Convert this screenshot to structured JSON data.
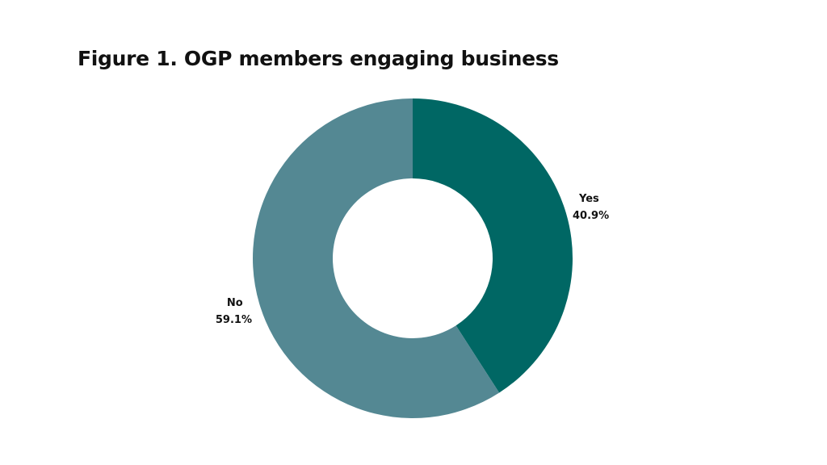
{
  "chart_data": {
    "type": "pie",
    "title": "Figure 1. OGP members engaging business",
    "donut": true,
    "categories": [
      "Yes",
      "No"
    ],
    "values": [
      40.9,
      59.1
    ],
    "value_labels": [
      "40.9%",
      "59.1%"
    ],
    "colors": [
      "#006764",
      "#548893"
    ]
  }
}
